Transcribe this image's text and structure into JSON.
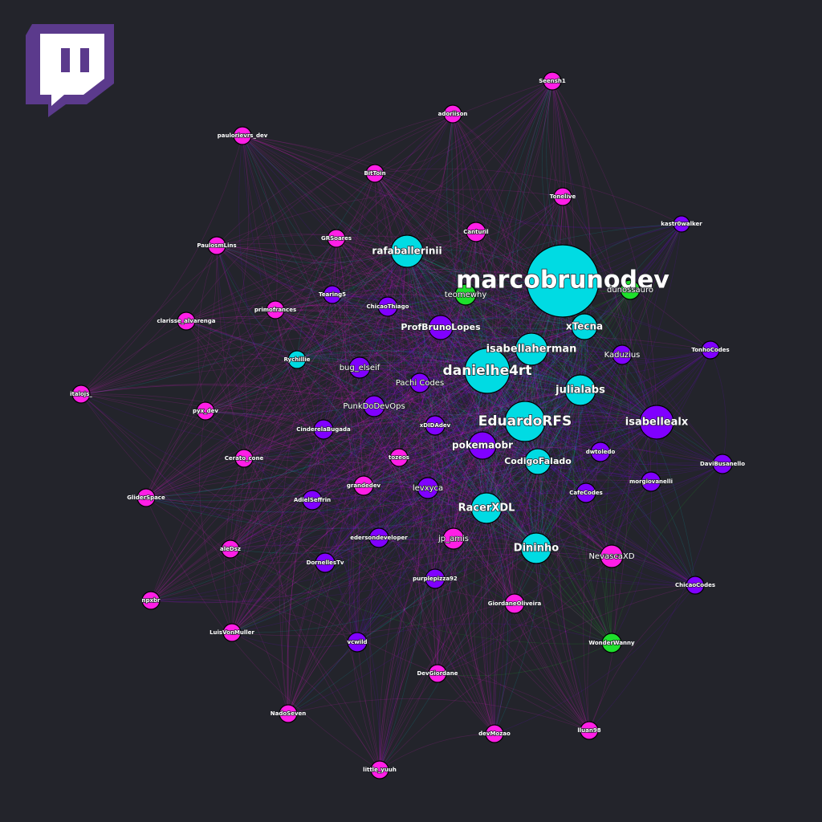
{
  "nodes": [
    {
      "label": "Seensh1",
      "color": "#ff1ee6"
    },
    {
      "label": "adoriison",
      "color": "#ff1ee6"
    },
    {
      "label": "paulorievrs_dev",
      "color": "#ff1ee6"
    },
    {
      "label": "BitToin",
      "color": "#ff1ee6"
    },
    {
      "label": "Tonelive",
      "color": "#ff1ee6"
    },
    {
      "label": "kastr0walker",
      "color": "#8000ff"
    },
    {
      "label": "Canturil",
      "color": "#ff1ee6"
    },
    {
      "label": "GRSoares",
      "color": "#ff1ee6"
    },
    {
      "label": "PaulosmLins",
      "color": "#ff1ee6"
    },
    {
      "label": "rafaballerinii",
      "color": "#00dbe3"
    },
    {
      "label": "marcobrunodev",
      "color": "#00dbe3"
    },
    {
      "label": "dunossauro",
      "color": "#1ee02c"
    },
    {
      "label": "teomewhy",
      "color": "#1ee02c"
    },
    {
      "label": "Tearing5",
      "color": "#8000ff"
    },
    {
      "label": "ChicaoThiago",
      "color": "#8000ff"
    },
    {
      "label": "primofrances",
      "color": "#ff1ee6"
    },
    {
      "label": "clarisse_alvarenga",
      "color": "#ff1ee6"
    },
    {
      "label": "ProfBrunoLopes",
      "color": "#8000ff"
    },
    {
      "label": "xTecna",
      "color": "#00dbe3"
    },
    {
      "label": "isabellaherman",
      "color": "#00dbe3"
    },
    {
      "label": "Kaduzius",
      "color": "#8000ff"
    },
    {
      "label": "TonhoCodes",
      "color": "#8000ff"
    },
    {
      "label": "Rychillie",
      "color": "#00dbe3"
    },
    {
      "label": "bug_elseif",
      "color": "#8000ff"
    },
    {
      "label": "danielhe4rt",
      "color": "#00dbe3"
    },
    {
      "label": "Pachi Codes",
      "color": "#8000ff"
    },
    {
      "label": "julialabs",
      "color": "#00dbe3"
    },
    {
      "label": "italojs_",
      "color": "#ff1ee6"
    },
    {
      "label": "PunkDoDevOps",
      "color": "#8000ff"
    },
    {
      "label": "pyx_dev",
      "color": "#ff1ee6"
    },
    {
      "label": "EduardoRFS",
      "color": "#00dbe3"
    },
    {
      "label": "isabellealx",
      "color": "#8000ff"
    },
    {
      "label": "xDIDAdev",
      "color": "#8000ff"
    },
    {
      "label": "CinderelaBugada",
      "color": "#8000ff"
    },
    {
      "label": "pokemaobr",
      "color": "#8000ff"
    },
    {
      "label": "dwtoledo",
      "color": "#8000ff"
    },
    {
      "label": "tozeos",
      "color": "#ff1ee6"
    },
    {
      "label": "Cerato_cone",
      "color": "#ff1ee6"
    },
    {
      "label": "CodigoFalado",
      "color": "#00dbe3"
    },
    {
      "label": "DaviBusanello",
      "color": "#8000ff"
    },
    {
      "label": "morgiovanelli",
      "color": "#8000ff"
    },
    {
      "label": "grandedev",
      "color": "#ff1ee6"
    },
    {
      "label": "levxyca",
      "color": "#8000ff"
    },
    {
      "label": "CafeCodes",
      "color": "#8000ff"
    },
    {
      "label": "GliderSpace",
      "color": "#ff1ee6"
    },
    {
      "label": "AdielSeffrin",
      "color": "#8000ff"
    },
    {
      "label": "RacerXDL",
      "color": "#00dbe3"
    },
    {
      "label": "edersondeveloper",
      "color": "#8000ff"
    },
    {
      "label": "jp_amis",
      "color": "#ff1ee6"
    },
    {
      "label": "Dininho",
      "color": "#00dbe3"
    },
    {
      "label": "aleDsz",
      "color": "#ff1ee6"
    },
    {
      "label": "NevascaXD",
      "color": "#ff1ee6"
    },
    {
      "label": "DornellesTv",
      "color": "#8000ff"
    },
    {
      "label": "purplepizza92",
      "color": "#8000ff"
    },
    {
      "label": "ChicaoCodes",
      "color": "#8000ff"
    },
    {
      "label": "npxbr",
      "color": "#ff1ee6"
    },
    {
      "label": "GiordaneOliveira",
      "color": "#ff1ee6"
    },
    {
      "label": "LuisVonMuller",
      "color": "#ff1ee6"
    },
    {
      "label": "vcwild",
      "color": "#8000ff"
    },
    {
      "label": "WonderWanny",
      "color": "#1ee02c"
    },
    {
      "label": "DevGiordane",
      "color": "#ff1ee6"
    },
    {
      "label": "NadoSeven",
      "color": "#ff1ee6"
    },
    {
      "label": "devMozao",
      "color": "#ff1ee6"
    },
    {
      "label": "lluan98",
      "color": "#ff1ee6"
    },
    {
      "label": "little_yuuh",
      "color": "#ff1ee6"
    }
  ]
}
